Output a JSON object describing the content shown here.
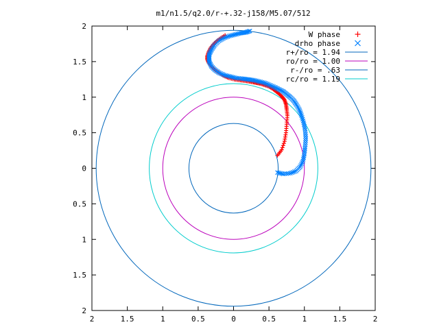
{
  "chart_data": {
    "type": "scatter",
    "title": "m1/n1.5/q2.0/r-+.32-j158/M5.07/512",
    "xlim": [
      -2,
      2
    ],
    "ylim": [
      -2,
      2
    ],
    "x_ticks": [
      -2,
      -1.5,
      -1,
      -0.5,
      0,
      0.5,
      1,
      1.5,
      2
    ],
    "y_ticks": [
      -2,
      -1.5,
      -1,
      -0.5,
      0,
      0.5,
      1,
      1.5,
      2
    ],
    "x_tick_labels": [
      "2",
      "1.5",
      "1",
      "0.5",
      "0",
      "0.5",
      "1",
      "1.5",
      "2"
    ],
    "y_tick_labels": [
      "2",
      "1.5",
      "1",
      "0.5",
      "0",
      "0.5",
      "1",
      "1.5",
      "2"
    ],
    "grid": false,
    "legend_position": "top-right",
    "series": [
      {
        "name": "W phase",
        "kind": "points",
        "marker": "+",
        "color": "#ff0000",
        "x": [
          0.62,
          0.68,
          0.72,
          0.74,
          0.75,
          0.76,
          0.75,
          0.74,
          0.72,
          0.69,
          0.65,
          0.6,
          0.55,
          0.5,
          0.44,
          0.38,
          0.33,
          0.28,
          0.22,
          0.15,
          0.08,
          0.01,
          -0.07,
          -0.14,
          -0.2,
          -0.26,
          -0.31,
          -0.35,
          -0.37,
          -0.37,
          -0.35,
          -0.32,
          -0.27,
          -0.2,
          -0.12
        ],
        "y": [
          0.18,
          0.26,
          0.38,
          0.5,
          0.62,
          0.74,
          0.83,
          0.9,
          0.96,
          1.0,
          1.04,
          1.08,
          1.12,
          1.15,
          1.17,
          1.19,
          1.2,
          1.21,
          1.22,
          1.23,
          1.24,
          1.25,
          1.27,
          1.3,
          1.34,
          1.38,
          1.43,
          1.48,
          1.53,
          1.58,
          1.64,
          1.7,
          1.76,
          1.82,
          1.87
        ]
      },
      {
        "name": "drho phase",
        "kind": "points",
        "marker": "x",
        "color": "#0080ff",
        "x": [
          0.62,
          0.7,
          0.8,
          0.88,
          0.94,
          0.98,
          1.0,
          1.01,
          1.02,
          1.01,
          0.99,
          0.96,
          0.93,
          0.89,
          0.85,
          0.8,
          0.75,
          0.7,
          0.64,
          0.58,
          0.51,
          0.44,
          0.36,
          0.28,
          0.2,
          0.12,
          0.03,
          -0.05,
          -0.13,
          -0.2,
          -0.26,
          -0.31,
          -0.34,
          -0.35,
          -0.34,
          -0.31,
          -0.27,
          -0.21,
          -0.14,
          -0.06,
          0.02,
          0.1,
          0.17,
          0.23
        ],
        "y": [
          -0.06,
          -0.08,
          -0.07,
          -0.04,
          0.02,
          0.1,
          0.2,
          0.3,
          0.42,
          0.54,
          0.64,
          0.74,
          0.82,
          0.89,
          0.95,
          1.0,
          1.04,
          1.08,
          1.11,
          1.14,
          1.17,
          1.2,
          1.22,
          1.24,
          1.25,
          1.26,
          1.27,
          1.29,
          1.31,
          1.34,
          1.38,
          1.43,
          1.49,
          1.55,
          1.61,
          1.67,
          1.73,
          1.79,
          1.83,
          1.86,
          1.88,
          1.9,
          1.91,
          1.93
        ]
      },
      {
        "name": "r+/ro = 1.94",
        "kind": "circle",
        "radius": 1.94,
        "color": "#0066bb"
      },
      {
        "name": "ro/ro = 1.00",
        "kind": "circle",
        "radius": 1.0,
        "color": "#bb00bb"
      },
      {
        "name": "r-/ro = .63",
        "kind": "circle",
        "radius": 0.63,
        "color": "#0066bb"
      },
      {
        "name": "rc/ro = 1.19",
        "kind": "circle",
        "radius": 1.19,
        "color": "#00cccc"
      }
    ]
  }
}
